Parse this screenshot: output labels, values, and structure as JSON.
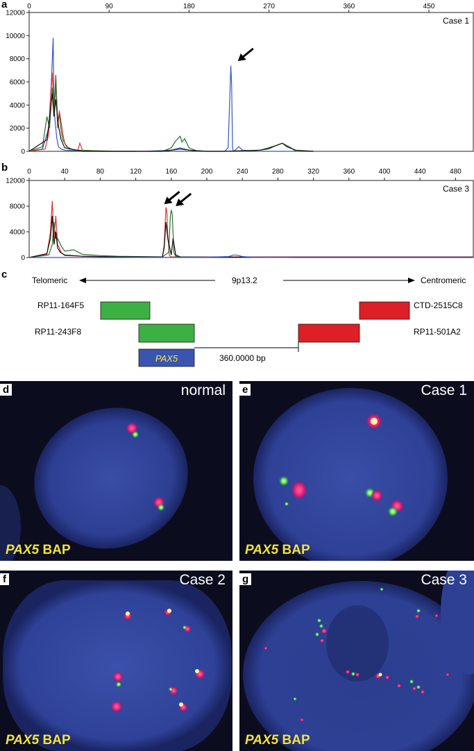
{
  "panel_a": {
    "letter": "a",
    "case_label": "Case 1",
    "chart_data": {
      "type": "line",
      "x_ticks": [
        0,
        90,
        180,
        270,
        360,
        450
      ],
      "y_ticks": [
        0,
        2000,
        4000,
        6000,
        8000,
        10000,
        12000
      ],
      "xlim": [
        0,
        500
      ],
      "ylim": [
        0,
        12000
      ],
      "series": [
        {
          "color": "#3355cc",
          "x": [
            0,
            15,
            22,
            25,
            27,
            28,
            29,
            31,
            33,
            36,
            40,
            50,
            60,
            100,
            130,
            160,
            170,
            180,
            200,
            220,
            224,
            226,
            227,
            228,
            229,
            230,
            232,
            236,
            240,
            260,
            280,
            300,
            320
          ],
          "y": [
            0,
            200,
            2000,
            6000,
            9800,
            4000,
            2800,
            1200,
            400,
            200,
            100,
            50,
            0,
            0,
            0,
            100,
            300,
            100,
            0,
            0,
            300,
            5000,
            7400,
            5600,
            300,
            0,
            100,
            400,
            100,
            0,
            0,
            0,
            0
          ]
        },
        {
          "color": "#e03030",
          "x": [
            0,
            18,
            22,
            24,
            26,
            28,
            30,
            32,
            34,
            38,
            40,
            45,
            55,
            57,
            60,
            80,
            100,
            120
          ],
          "y": [
            0,
            200,
            1500,
            4500,
            6800,
            3000,
            5800,
            2000,
            3500,
            1500,
            700,
            200,
            100,
            700,
            100,
            0,
            0,
            0
          ]
        },
        {
          "color": "#2f6e2a",
          "x": [
            0,
            15,
            20,
            23,
            26,
            28,
            30,
            32,
            34,
            36,
            38,
            42,
            50,
            100,
            150,
            160,
            165,
            170,
            172,
            175,
            180,
            190,
            240,
            260,
            270,
            275,
            285,
            290,
            295,
            300,
            320
          ],
          "y": [
            0,
            400,
            3000,
            2000,
            5500,
            3500,
            6600,
            2500,
            3200,
            1800,
            1000,
            400,
            100,
            0,
            0,
            300,
            900,
            1300,
            800,
            1100,
            300,
            0,
            0,
            100,
            200,
            400,
            700,
            500,
            300,
            0,
            0
          ]
        },
        {
          "color": "#111111",
          "x": [
            0,
            20,
            24,
            26,
            28,
            30,
            33,
            36,
            40,
            60,
            150,
            170,
            180,
            200,
            220,
            260,
            270,
            278,
            285,
            290,
            300,
            320
          ],
          "y": [
            0,
            1000,
            3500,
            5000,
            3000,
            4500,
            2200,
            1000,
            300,
            0,
            0,
            200,
            100,
            0,
            0,
            100,
            300,
            500,
            700,
            400,
            100,
            0
          ]
        }
      ],
      "annotation": {
        "type": "arrow",
        "x": 235,
        "y": 7800
      }
    }
  },
  "panel_b": {
    "letter": "b",
    "case_label": "Case 3",
    "chart_data": {
      "type": "line",
      "x_ticks": [
        0,
        40,
        80,
        120,
        160,
        200,
        240,
        280,
        320,
        360,
        400,
        440,
        480
      ],
      "y_ticks": [
        0,
        4000,
        8000,
        12000
      ],
      "xlim": [
        0,
        500
      ],
      "ylim": [
        0,
        12000
      ],
      "series": [
        {
          "color": "#e03030",
          "x": [
            0,
            20,
            24,
            26,
            28,
            30,
            32,
            34,
            36,
            40,
            60,
            100,
            150,
            152,
            154,
            155,
            156,
            158,
            160,
            170,
            200,
            300,
            400,
            500
          ],
          "y": [
            0,
            500,
            4000,
            8800,
            3000,
            6500,
            2000,
            1500,
            800,
            300,
            200,
            100,
            100,
            2000,
            7800,
            7200,
            3500,
            300,
            100,
            100,
            100,
            100,
            100,
            100
          ]
        },
        {
          "color": "#2f6e2a",
          "x": [
            0,
            22,
            26,
            28,
            30,
            32,
            36,
            40,
            50,
            60,
            80,
            100,
            150,
            157,
            159,
            160,
            161,
            163,
            165,
            170,
            200,
            500
          ],
          "y": [
            0,
            400,
            2000,
            5500,
            3000,
            3000,
            1800,
            1000,
            1200,
            500,
            300,
            200,
            100,
            800,
            6500,
            7400,
            6800,
            800,
            200,
            100,
            50,
            50
          ]
        },
        {
          "color": "#111111",
          "x": [
            0,
            20,
            24,
            26,
            28,
            30,
            32,
            35,
            40,
            60,
            100,
            150,
            152,
            154,
            156,
            160,
            162,
            165,
            170,
            200,
            500
          ],
          "y": [
            0,
            600,
            3000,
            6500,
            2000,
            4000,
            1500,
            800,
            400,
            200,
            100,
            100,
            1500,
            5500,
            3000,
            400,
            3000,
            400,
            100,
            50,
            50
          ]
        },
        {
          "color": "#3355cc",
          "x": [
            0,
            100,
            200,
            225,
            230,
            235,
            240,
            250,
            300,
            500
          ],
          "y": [
            0,
            0,
            50,
            150,
            400,
            350,
            150,
            50,
            0,
            0
          ]
        }
      ],
      "annotations": [
        {
          "type": "arrow",
          "x": 152,
          "y": 8300
        },
        {
          "type": "arrow",
          "x": 165,
          "y": 8000
        }
      ]
    }
  },
  "panel_c": {
    "letter": "c",
    "telomeric": "Telomeric",
    "locus": "9p13.2",
    "centromeric": "Centromeric",
    "probes": {
      "rp11_164f5": "RP11-164F5",
      "rp11_243f8": "RP11-243F8",
      "ctd_2515c8": "CTD-2515C8",
      "rp11_501a2": "RP11-501A2"
    },
    "gene": "PAX5",
    "distance": "360.0000 bp",
    "colors": {
      "green_probe": "#3cb043",
      "red_probe": "#dd1f26",
      "gene_box": "#3a55b0",
      "gene_text": "#f5e642"
    }
  },
  "fish_panels": [
    {
      "letter": "d",
      "title": "normal",
      "gene": "PAX5",
      "probe": "BAP"
    },
    {
      "letter": "e",
      "title": "Case 1",
      "gene": "PAX5",
      "probe": "BAP"
    },
    {
      "letter": "f",
      "title": "Case 2",
      "gene": "PAX5",
      "probe": "BAP"
    },
    {
      "letter": "g",
      "title": "Case 3",
      "gene": "PAX5",
      "probe": "BAP"
    }
  ]
}
